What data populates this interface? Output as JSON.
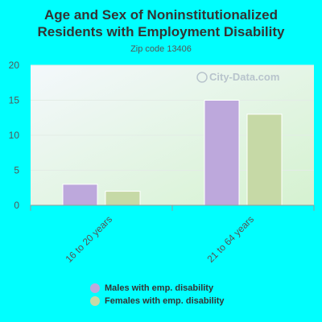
{
  "title_lines": [
    "Age and Sex of Noninstitutionalized",
    "Residents with Employment Disability"
  ],
  "subtitle": "Zip code 13406",
  "watermark": "City-Data.com",
  "colors": {
    "background": "#00ffff",
    "males": "#bda8dc",
    "females": "#c6d9a6"
  },
  "chart_data": {
    "type": "bar",
    "categories": [
      "16 to 20 years",
      "21 to 64 years"
    ],
    "series": [
      {
        "name": "Males with emp. disability",
        "values": [
          3,
          15
        ]
      },
      {
        "name": "Females with emp. disability",
        "values": [
          2,
          13
        ]
      }
    ],
    "ylim": [
      0,
      20
    ],
    "yticks": [
      0,
      5,
      10,
      15,
      20
    ],
    "grid": true,
    "legend": "bottom"
  }
}
